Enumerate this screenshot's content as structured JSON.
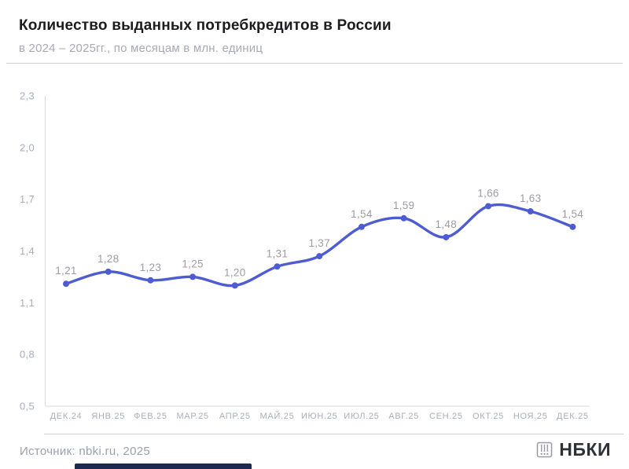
{
  "header": {
    "title": "Количество выданных потребкредитов в России",
    "subtitle": "в 2024 – 2025гг., по месяцам в млн. единиц"
  },
  "chart_data": {
    "type": "line",
    "title": "Количество выданных потребкредитов в России",
    "subtitle": "в 2024 – 2025гг., по месяцам в млн. единиц",
    "categories": [
      "ДЕК.24",
      "ЯНВ.25",
      "ФЕВ.25",
      "МАР.25",
      "АПР.25",
      "МАЙ.25",
      "ИЮН.25",
      "ИЮЛ.25",
      "АВГ.25",
      "СЕН.25",
      "ОКТ.25",
      "НОЯ.25",
      "ДЕК.25"
    ],
    "values": [
      1.21,
      1.28,
      1.23,
      1.25,
      1.2,
      1.31,
      1.37,
      1.54,
      1.59,
      1.48,
      1.66,
      1.63,
      1.54
    ],
    "value_labels": [
      "1,21",
      "1,28",
      "1,23",
      "1,25",
      "1,20",
      "1,31",
      "1,37",
      "1,54",
      "1,59",
      "1,48",
      "1,66",
      "1,63",
      "1,54"
    ],
    "y_ticks": [
      {
        "label": "2,3",
        "value": 2.3
      },
      {
        "label": "2,0",
        "value": 2.0
      },
      {
        "label": "1,7",
        "value": 1.7
      },
      {
        "label": "1,4",
        "value": 1.4
      },
      {
        "label": "1,1",
        "value": 1.1
      },
      {
        "label": "0,8",
        "value": 0.8
      },
      {
        "label": "0,5",
        "value": 0.5
      }
    ],
    "ylim": [
      0.5,
      2.3
    ],
    "xlabel": "",
    "ylabel": "",
    "grid": false,
    "legend": "none",
    "line_color": "#4d5cd0",
    "marker_color": "#4d5cd0",
    "axis_color": "#d9dae3",
    "tick_label_color": "#a9adbc",
    "value_label_color": "#9b9ba6"
  },
  "footer": {
    "source": "Источник: nbki.ru, 2025",
    "logo_text": "НБКИ",
    "logo_icon": "abacus-icon",
    "accent_bar_color": "#1d2950"
  }
}
